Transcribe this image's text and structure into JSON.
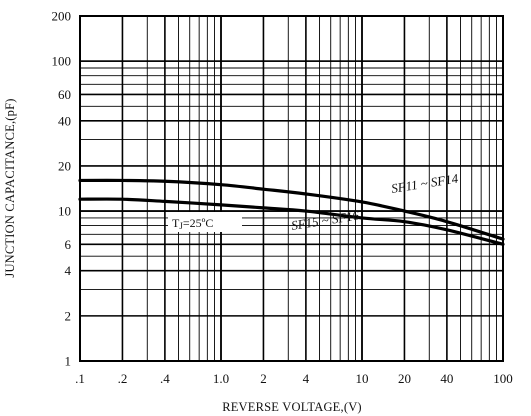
{
  "chart_data": {
    "type": "line",
    "xlabel": "REVERSE VOLTAGE,(V)",
    "ylabel": "JUNCTION CAPACITANCE,(pF)",
    "x_scale": "log",
    "y_scale": "log",
    "xlim": [
      0.1,
      100
    ],
    "ylim": [
      1,
      200
    ],
    "x_ticks": [
      {
        "value": 0.1,
        "label": ".1"
      },
      {
        "value": 0.2,
        "label": ".2"
      },
      {
        "value": 0.4,
        "label": ".4"
      },
      {
        "value": 1,
        "label": "1.0"
      },
      {
        "value": 2,
        "label": "2"
      },
      {
        "value": 4,
        "label": "4"
      },
      {
        "value": 10,
        "label": "10"
      },
      {
        "value": 20,
        "label": "20"
      },
      {
        "value": 40,
        "label": "40"
      },
      {
        "value": 100,
        "label": "100"
      }
    ],
    "y_ticks": [
      {
        "value": 1,
        "label": "1"
      },
      {
        "value": 2,
        "label": "2"
      },
      {
        "value": 4,
        "label": "4"
      },
      {
        "value": 6,
        "label": "6"
      },
      {
        "value": 10,
        "label": "10"
      },
      {
        "value": 20,
        "label": "20"
      },
      {
        "value": 40,
        "label": "40"
      },
      {
        "value": 60,
        "label": "60"
      },
      {
        "value": 100,
        "label": "100"
      },
      {
        "value": 200,
        "label": "200"
      }
    ],
    "grid": true,
    "series": [
      {
        "name": "SF11 ~ SF14",
        "x": [
          0.1,
          0.2,
          0.4,
          1,
          2,
          4,
          10,
          20,
          40,
          100
        ],
        "y": [
          16,
          16,
          15.8,
          15,
          14,
          13,
          11.5,
          10,
          8.5,
          6.5
        ]
      },
      {
        "name": "SF15 ~ SF16",
        "x": [
          0.1,
          0.2,
          0.4,
          1,
          2,
          4,
          10,
          20,
          40,
          100
        ],
        "y": [
          12,
          12,
          11.6,
          11,
          10.5,
          10,
          9,
          8.5,
          7.5,
          6
        ]
      }
    ],
    "annotations": [
      {
        "text": "T",
        "sub": "J",
        "suffix": "=25ºC"
      }
    ]
  }
}
